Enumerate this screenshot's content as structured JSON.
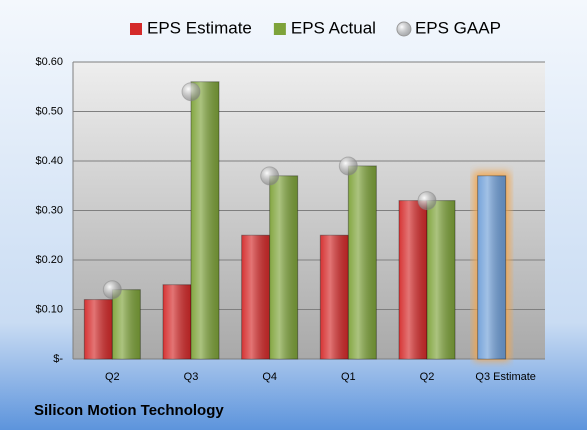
{
  "chart_data": {
    "type": "bar",
    "footer": "Silicon Motion Technology",
    "categories": [
      "Q2",
      "Q3",
      "Q4",
      "Q1",
      "Q2",
      "Q3 Estimate"
    ],
    "series": [
      {
        "name": "EPS Estimate",
        "color": "#d42a2a",
        "values": [
          0.12,
          0.15,
          0.25,
          0.25,
          0.32,
          0.37
        ]
      },
      {
        "name": "EPS Actual",
        "color": "#7ea33a",
        "values": [
          0.14,
          0.56,
          0.37,
          0.39,
          0.32,
          null
        ]
      },
      {
        "name": "EPS GAAP",
        "color": "#a8a8a8",
        "values": [
          0.14,
          0.54,
          0.37,
          0.39,
          0.32,
          null
        ],
        "marker": "circle"
      }
    ],
    "highlight": {
      "index": 5,
      "color": "#6f9fd8",
      "glow": "#f5a64a"
    },
    "ylim": [
      0,
      0.6
    ],
    "yticks": [
      {
        "value": 0,
        "label": "$-"
      },
      {
        "value": 0.1,
        "label": "$0.10"
      },
      {
        "value": 0.2,
        "label": "$0.20"
      },
      {
        "value": 0.3,
        "label": "$0.30"
      },
      {
        "value": 0.4,
        "label": "$0.40"
      },
      {
        "value": 0.5,
        "label": "$0.50"
      },
      {
        "value": 0.6,
        "label": "$0.60"
      }
    ],
    "grid": true
  }
}
